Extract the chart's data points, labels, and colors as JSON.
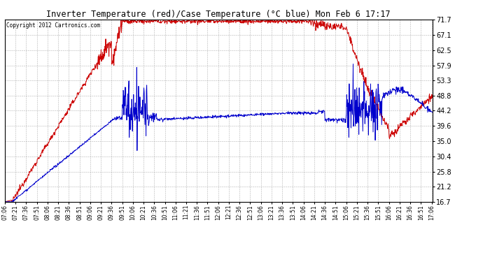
{
  "title": "Inverter Temperature (red)/Case Temperature (°C blue) Mon Feb 6 17:17",
  "copyright": "Copyright 2012 Cartronics.com",
  "y_ticks": [
    16.7,
    21.2,
    25.8,
    30.4,
    35.0,
    39.6,
    44.2,
    48.8,
    53.3,
    57.9,
    62.5,
    67.1,
    71.7
  ],
  "y_min": 16.7,
  "y_max": 71.7,
  "bg_color": "#ffffff",
  "grid_color": "#aaaaaa",
  "red_color": "#cc0000",
  "blue_color": "#0000cc",
  "x_labels": [
    "07:06",
    "07:21",
    "07:36",
    "07:51",
    "08:06",
    "08:21",
    "08:36",
    "08:51",
    "09:06",
    "09:21",
    "09:36",
    "09:51",
    "10:06",
    "10:21",
    "10:36",
    "10:51",
    "11:06",
    "11:21",
    "11:36",
    "11:51",
    "12:06",
    "12:21",
    "12:36",
    "12:51",
    "13:06",
    "13:21",
    "13:36",
    "13:51",
    "14:06",
    "14:21",
    "14:36",
    "14:51",
    "15:06",
    "15:21",
    "15:36",
    "15:51",
    "16:06",
    "16:21",
    "16:36",
    "16:51",
    "17:06"
  ],
  "total_minutes": 601,
  "lw": 0.7
}
